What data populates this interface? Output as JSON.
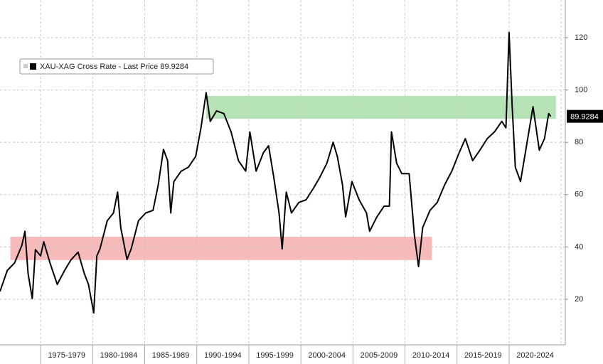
{
  "chart_data": {
    "type": "line",
    "x": [
      1971.1,
      1971.8,
      1972.5,
      1973.2,
      1973.5,
      1973.8,
      1974.2,
      1974.5,
      1975.0,
      1975.3,
      1975.9,
      1976.6,
      1977.3,
      1977.9,
      1978.6,
      1979.2,
      1979.6,
      1980.1,
      1980.4,
      1980.7,
      1981.4,
      1982.0,
      1982.4,
      1982.7,
      1983.3,
      1983.7,
      1984.4,
      1985.1,
      1985.8,
      1986.3,
      1986.8,
      1987.2,
      1987.5,
      1987.8,
      1988.5,
      1989.2,
      1989.9,
      1990.4,
      1990.9,
      1991.3,
      1991.9,
      1992.6,
      1993.3,
      1994.0,
      1994.7,
      1995.1,
      1995.7,
      1996.4,
      1996.9,
      1997.4,
      1997.9,
      1998.2,
      1998.6,
      1999.1,
      1999.8,
      2000.5,
      2001.2,
      2001.8,
      2002.5,
      2003.1,
      2003.5,
      2004.0,
      2004.3,
      2004.9,
      2005.6,
      2006.3,
      2006.6,
      2007.3,
      2008.0,
      2008.5,
      2008.7,
      2009.2,
      2009.7,
      2010.4,
      2010.9,
      2011.3,
      2011.7,
      2012.4,
      2013.1,
      2013.8,
      2014.5,
      2015.2,
      2015.8,
      2016.5,
      2017.2,
      2017.9,
      2018.6,
      2019.3,
      2019.7,
      2020.0,
      2020.3,
      2020.6,
      2021.1,
      2021.6,
      2022.3,
      2022.9,
      2023.4,
      2023.8,
      2024.0
    ],
    "series": [
      {
        "name": "XAU-XAG Cross Rate - Last Price 89.9284",
        "color": "#000000",
        "values": [
          23,
          31,
          33.9,
          40.6,
          46,
          29.8,
          20.3,
          39,
          36.6,
          42,
          33.9,
          25.7,
          31,
          35,
          38,
          29.8,
          25.7,
          14.8,
          36.6,
          39.3,
          50,
          53,
          61,
          47.4,
          35.2,
          39.3,
          50,
          53,
          54,
          63.7,
          77.3,
          73,
          53,
          65,
          69,
          70.5,
          74.6,
          85.5,
          99,
          88,
          92,
          91,
          84,
          73,
          69,
          84,
          69,
          76,
          78.7,
          66.5,
          53,
          39.3,
          61,
          53,
          57,
          58,
          62.4,
          66.5,
          72,
          80,
          74.6,
          63.7,
          51.5,
          65,
          58,
          53,
          46,
          51.5,
          55.6,
          55.6,
          84,
          72,
          68,
          68,
          44.7,
          32.5,
          47.4,
          54,
          57,
          63.7,
          69,
          76,
          81.4,
          73,
          77,
          81.4,
          84,
          88,
          85.5,
          122,
          93.6,
          70.5,
          65,
          77,
          93.6,
          77,
          81.4,
          91,
          89.9
        ]
      }
    ],
    "last_price": 89.9284,
    "bands": [
      {
        "x": [
          1990.9,
          2024.5
        ],
        "y": [
          89,
          97.7
        ],
        "color": "#b5e3b5"
      },
      {
        "x": [
          1972.1,
          2012.6
        ],
        "y": [
          35,
          43.9
        ],
        "color": "#f6baba"
      }
    ],
    "xlim": [
      1971.1,
      2025.4
    ],
    "ylim": [
      2.6,
      134.4
    ],
    "yticks": [
      20,
      40,
      60,
      80,
      100,
      120
    ],
    "xticks": [
      {
        "value": 1977.5,
        "label": "1975-1979"
      },
      {
        "value": 1982.5,
        "label": "1980-1984"
      },
      {
        "value": 1987.5,
        "label": "1985-1989"
      },
      {
        "value": 1992.5,
        "label": "1990-1994"
      },
      {
        "value": 1997.5,
        "label": "1995-1999"
      },
      {
        "value": 2002.5,
        "label": "2000-2004"
      },
      {
        "value": 2007.5,
        "label": "2005-2009"
      },
      {
        "value": 2012.5,
        "label": "2010-2014"
      },
      {
        "value": 2017.5,
        "label": "2015-2019"
      },
      {
        "value": 2022.5,
        "label": "2020-2024"
      }
    ],
    "grid": true
  }
}
